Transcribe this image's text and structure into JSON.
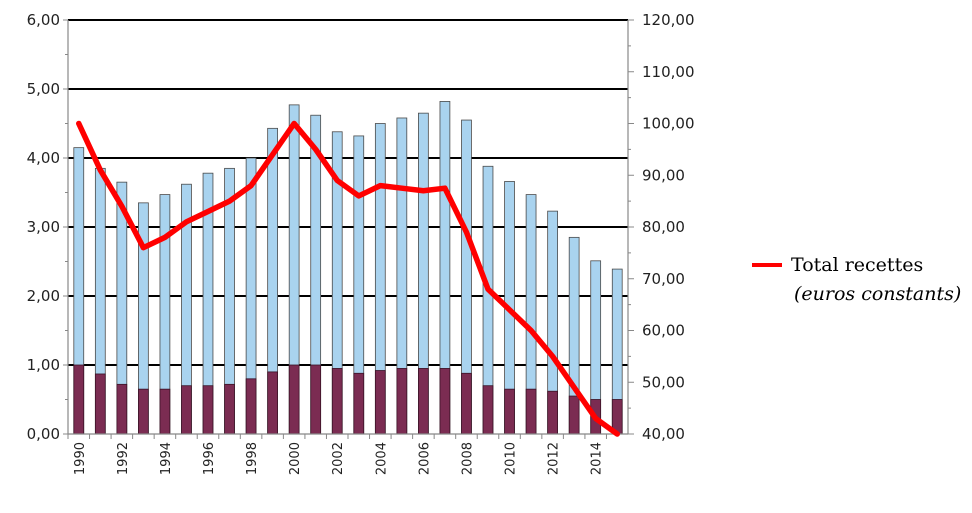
{
  "chart_data": {
    "type": "bar",
    "x": [
      1990,
      1991,
      1992,
      1993,
      1994,
      1995,
      1996,
      1997,
      1998,
      1999,
      2000,
      2001,
      2002,
      2003,
      2004,
      2005,
      2006,
      2007,
      2008,
      2009,
      2010,
      2011,
      2012,
      2013,
      2014,
      2015
    ],
    "xtick_labels": [
      "1990",
      "1992",
      "1994",
      "1996",
      "1998",
      "2000",
      "2002",
      "2004",
      "2006",
      "2008",
      "2010",
      "2012",
      "2014"
    ],
    "xtick_values": [
      1990,
      1992,
      1994,
      1996,
      1998,
      2000,
      2002,
      2004,
      2006,
      2008,
      2010,
      2012,
      2014
    ],
    "left_axis": {
      "ylim": [
        0,
        6
      ],
      "ticks": [
        "0,00",
        "1,00",
        "2,00",
        "3,00",
        "4,00",
        "5,00",
        "6,00"
      ],
      "tick_values": [
        0,
        1,
        2,
        3,
        4,
        5,
        6
      ]
    },
    "right_axis": {
      "ylim": [
        40,
        120
      ],
      "ticks": [
        "40,00",
        "50,00",
        "60,00",
        "70,00",
        "80,00",
        "90,00",
        "100,00",
        "110,00",
        "120,00"
      ],
      "tick_values": [
        40,
        50,
        60,
        70,
        80,
        90,
        100,
        110,
        120
      ]
    },
    "series": [
      {
        "kind": "bar",
        "stack": "base",
        "color": "#7b2c52",
        "values": [
          1.0,
          0.87,
          0.72,
          0.65,
          0.65,
          0.7,
          0.7,
          0.72,
          0.8,
          0.9,
          1.0,
          1.0,
          0.95,
          0.88,
          0.92,
          0.95,
          0.95,
          0.95,
          0.88,
          0.7,
          0.65,
          0.65,
          0.62,
          0.55,
          0.5,
          0.5
        ]
      },
      {
        "kind": "bar",
        "stack": "total",
        "color": "#a9d3ef",
        "values": [
          4.15,
          3.85,
          3.65,
          3.35,
          3.47,
          3.62,
          3.78,
          3.85,
          4.0,
          4.43,
          4.77,
          4.62,
          4.38,
          4.32,
          4.5,
          4.58,
          4.65,
          4.82,
          4.55,
          3.88,
          3.66,
          3.47,
          3.23,
          2.85,
          2.51,
          2.39
        ]
      },
      {
        "kind": "line",
        "axis": "right",
        "name": "Total recettes",
        "color": "#ff0000",
        "values": [
          100,
          91,
          84,
          76,
          78,
          81,
          83,
          85,
          88,
          94,
          100,
          95,
          89,
          86,
          88,
          87.5,
          87,
          87.5,
          79,
          68,
          64,
          60,
          55,
          49,
          43,
          40
        ]
      }
    ],
    "legend": {
      "label": "Total recettes",
      "sublabel": "(euros constants)",
      "placement": "right"
    },
    "grid": true,
    "title": "",
    "xlabel": "",
    "ylabel": ""
  }
}
